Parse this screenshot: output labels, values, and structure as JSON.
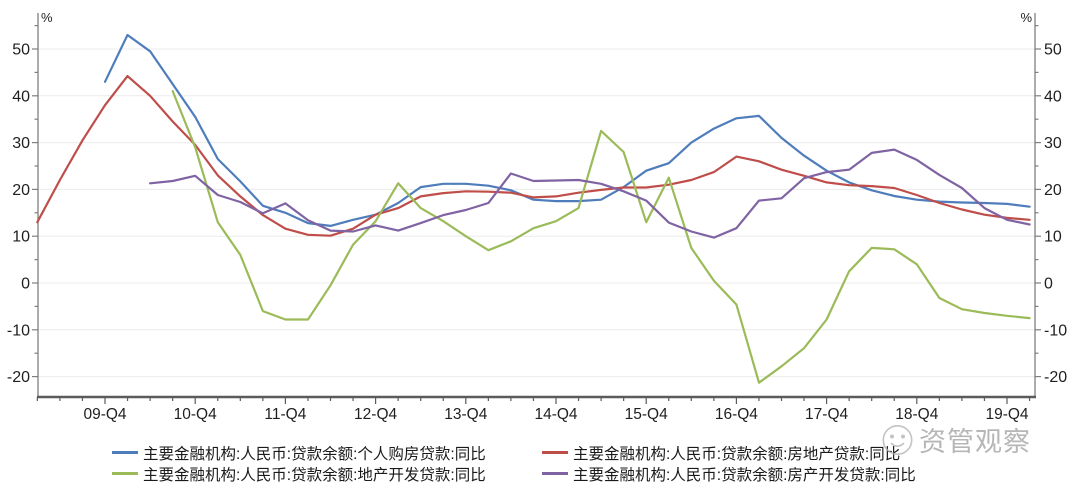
{
  "axes": {
    "unit_left": "%",
    "unit_right": "%"
  },
  "watermark": {
    "text": "资管观察",
    "logo": "smiley-circle-icon"
  },
  "chart_data": {
    "type": "line",
    "title": "",
    "y_unit": "%",
    "grid": "horizontal",
    "legend_position": "bottom",
    "ylim": [
      -25,
      57
    ],
    "y_ticks": [
      50,
      40,
      30,
      20,
      10,
      0,
      -10,
      -20
    ],
    "x_tick_labels": [
      "09-Q4",
      "10-Q4",
      "11-Q4",
      "12-Q4",
      "13-Q4",
      "14-Q4",
      "15-Q4",
      "16-Q4",
      "17-Q4",
      "18-Q4",
      "19-Q4"
    ],
    "x_quarters": [
      "09-Q1",
      "09-Q2",
      "09-Q3",
      "09-Q4",
      "10-Q1",
      "10-Q2",
      "10-Q3",
      "10-Q4",
      "11-Q1",
      "11-Q2",
      "11-Q3",
      "11-Q4",
      "12-Q1",
      "12-Q2",
      "12-Q3",
      "12-Q4",
      "13-Q1",
      "13-Q2",
      "13-Q3",
      "13-Q4",
      "14-Q1",
      "14-Q2",
      "14-Q3",
      "14-Q4",
      "15-Q1",
      "15-Q2",
      "15-Q3",
      "15-Q4",
      "16-Q1",
      "16-Q2",
      "16-Q3",
      "16-Q4",
      "17-Q1",
      "17-Q2",
      "17-Q3",
      "17-Q4",
      "18-Q1",
      "18-Q2",
      "18-Q3",
      "18-Q4",
      "19-Q1",
      "19-Q2",
      "19-Q3",
      "19-Q4",
      "20-Q1"
    ],
    "series": [
      {
        "name": "主要金融机构:人民币:贷款余额:个人购房贷款:同比",
        "color": "#4f7dbc",
        "values": [
          null,
          null,
          null,
          43,
          53,
          49.5,
          42.5,
          35.5,
          26.5,
          21.7,
          16.5,
          15,
          12.8,
          12.2,
          13.5,
          14.6,
          17.1,
          20.5,
          21.2,
          21.2,
          20.8,
          19.8,
          17.8,
          17.5,
          17.5,
          17.8,
          20.5,
          24,
          25.6,
          30,
          33,
          35.2,
          35.7,
          31,
          27.2,
          24,
          21.5,
          19.8,
          18.6,
          17.8,
          17.4,
          17.2,
          17.1,
          16.9,
          16.3
        ]
      },
      {
        "name": "主要金融机构:人民币:贷款余额:房地产贷款:同比",
        "color": "#bf4e4a",
        "values": [
          13,
          22,
          30.5,
          38,
          44.2,
          40,
          34.5,
          29.5,
          23,
          18.5,
          14.5,
          11.6,
          10.3,
          10.1,
          11.6,
          14.6,
          16,
          18.5,
          19.2,
          19.6,
          19.5,
          19.3,
          18.3,
          18.5,
          19.3,
          19.9,
          20.4,
          20.4,
          21,
          22,
          23.7,
          27,
          26,
          24.2,
          22.9,
          21.5,
          20.9,
          20.7,
          20.3,
          18.8,
          17.1,
          15.7,
          14.6,
          13.9,
          13.5
        ]
      },
      {
        "name": "主要金融机构:人民币:贷款余额:地产开发贷款:同比",
        "color": "#9bbb59",
        "values": [
          null,
          null,
          null,
          null,
          null,
          null,
          41,
          29,
          13,
          6,
          -6,
          -7.8,
          -7.8,
          -0.5,
          8.2,
          13.2,
          21.3,
          16,
          13.2,
          10,
          7,
          8.9,
          11.7,
          13.2,
          16,
          32.5,
          28,
          13,
          22.5,
          7.5,
          0.5,
          -4.6,
          -21.3,
          -17.8,
          -13.9,
          -7.8,
          2.5,
          7.5,
          7.2,
          4,
          -3.2,
          -5.6,
          -6.4,
          -7,
          -7.5
        ]
      },
      {
        "name": "主要金融机构:人民币:贷款余额:房产开发贷款:同比",
        "color": "#7f63a2",
        "values": [
          null,
          null,
          null,
          null,
          null,
          21.3,
          21.8,
          22.9,
          18.8,
          17.3,
          14.9,
          17,
          13.4,
          11.2,
          11,
          12.3,
          11.2,
          12.8,
          14.5,
          15.6,
          17.1,
          23.4,
          21.8,
          21.9,
          22,
          21.2,
          19.6,
          17.6,
          12.9,
          11,
          9.7,
          11.7,
          17.6,
          18.1,
          22.4,
          23.7,
          24.2,
          27.8,
          28.5,
          26.3,
          23.1,
          20.3,
          16,
          13.5,
          12.5
        ]
      }
    ]
  }
}
